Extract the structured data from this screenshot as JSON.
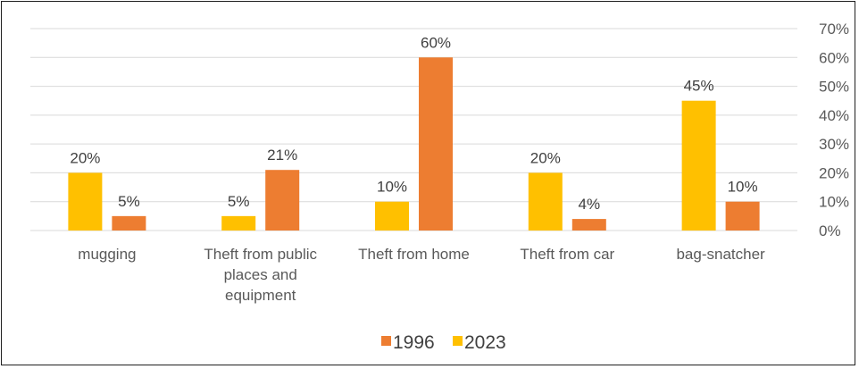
{
  "chart_data": {
    "type": "bar",
    "categories": [
      [
        "mugging"
      ],
      [
        "Theft from public",
        "places and",
        "equipment"
      ],
      [
        "Theft from home"
      ],
      [
        "Theft from car"
      ],
      [
        "bag-snatcher"
      ]
    ],
    "series": [
      {
        "name": "2023",
        "color": "#FFC000",
        "values": [
          20,
          5,
          10,
          20,
          45
        ],
        "labels": [
          "20%",
          "5%",
          "10%",
          "20%",
          "45%"
        ]
      },
      {
        "name": "1996",
        "color": "#ED7D31",
        "values": [
          5,
          21,
          60,
          4,
          10
        ],
        "labels": [
          "5%",
          "21%",
          "60%",
          "4%",
          "10%"
        ]
      }
    ],
    "legend_order": [
      "1996",
      "2023"
    ],
    "legend_labels": {
      "1996": "1996",
      "2023": "2023"
    },
    "legend_position": "bottom",
    "y_axis_position": "right",
    "ylim": [
      0,
      70
    ],
    "yticks": [
      0,
      10,
      20,
      30,
      40,
      50,
      60,
      70
    ],
    "ytick_labels": [
      "0%",
      "10%",
      "20%",
      "30%",
      "40%",
      "50%",
      "60%",
      "70%"
    ],
    "grid": true,
    "title": "",
    "xlabel": "",
    "ylabel": ""
  }
}
